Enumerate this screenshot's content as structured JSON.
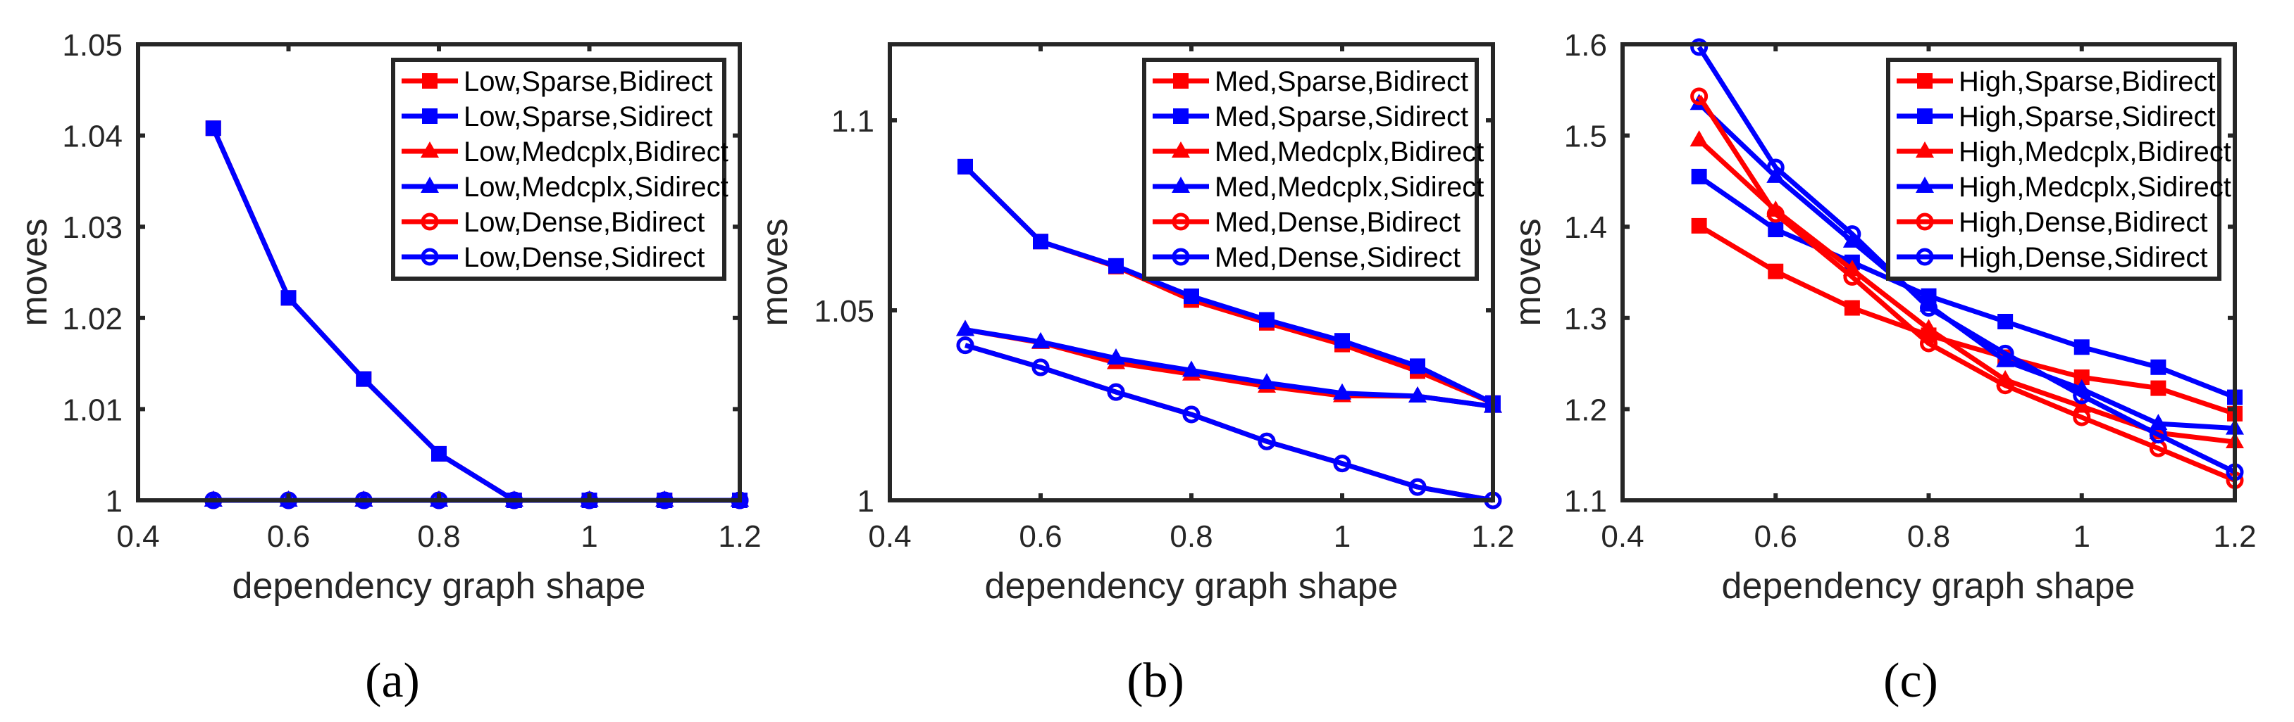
{
  "chart_data": [
    {
      "type": "line",
      "panel_label": "(a)",
      "xlabel": "dependency graph shape",
      "ylabel": "moves",
      "xlim": [
        0.4,
        1.2
      ],
      "ylim": [
        1,
        1.05
      ],
      "xticks": [
        "0.4",
        "0.6",
        "0.8",
        "1",
        "1.2"
      ],
      "yticks": [
        "1",
        "1.01",
        "1.02",
        "1.03",
        "1.04",
        "1.05"
      ],
      "legend_position": "top-right",
      "grid": false,
      "x": [
        0.5,
        0.6,
        0.7,
        0.8,
        0.9,
        1.0,
        1.1,
        1.2
      ],
      "series": [
        {
          "name": "Low,Sparse,Bidirect",
          "color": "#ff0000",
          "marker": "square",
          "values": [
            1.0408,
            1.0222,
            1.0133,
            1.0051,
            1,
            1,
            1,
            1
          ]
        },
        {
          "name": "Low,Sparse,Sidirect",
          "color": "#0000ff",
          "marker": "square",
          "values": [
            1.0408,
            1.0222,
            1.0133,
            1.0051,
            1,
            1,
            1,
            1
          ]
        },
        {
          "name": "Low,Medcplx,Bidirect",
          "color": "#ff0000",
          "marker": "triangle",
          "values": [
            1,
            1,
            1,
            1,
            1,
            1,
            1,
            1
          ]
        },
        {
          "name": "Low,Medcplx,Sidirect",
          "color": "#0000ff",
          "marker": "triangle",
          "values": [
            1,
            1,
            1,
            1,
            1,
            1,
            1,
            1
          ]
        },
        {
          "name": "Low,Dense,Bidirect",
          "color": "#ff0000",
          "marker": "circle",
          "values": [
            1,
            1,
            1,
            1,
            1,
            1,
            1,
            1
          ]
        },
        {
          "name": "Low,Dense,Sidirect",
          "color": "#0000ff",
          "marker": "circle",
          "values": [
            1,
            1,
            1,
            1,
            1,
            1,
            1,
            1
          ]
        }
      ]
    },
    {
      "type": "line",
      "panel_label": "(b)",
      "xlabel": "dependency graph shape",
      "ylabel": "moves",
      "xlim": [
        0.4,
        1.2
      ],
      "ylim": [
        1,
        1.12
      ],
      "xticks": [
        "0.4",
        "0.6",
        "0.8",
        "1",
        "1.2"
      ],
      "yticks": [
        "1",
        "1.05",
        "1.1"
      ],
      "legend_position": "top-right",
      "grid": false,
      "x": [
        0.5,
        0.6,
        0.7,
        0.8,
        0.9,
        1.0,
        1.1,
        1.2
      ],
      "series": [
        {
          "name": "Med,Sparse,Bidirect",
          "color": "#ff0000",
          "marker": "square",
          "values": [
            1.0878,
            1.0681,
            1.0615,
            1.0527,
            1.0467,
            1.041,
            1.034,
            1.0256
          ]
        },
        {
          "name": "Med,Sparse,Sidirect",
          "color": "#0000ff",
          "marker": "square",
          "values": [
            1.0878,
            1.0681,
            1.0617,
            1.0537,
            1.0475,
            1.042,
            1.0353,
            1.0256
          ]
        },
        {
          "name": "Med,Medcplx,Bidirect",
          "color": "#ff0000",
          "marker": "triangle",
          "values": [
            1.0449,
            1.0415,
            1.0362,
            1.0332,
            1.03,
            1.0275,
            1.0274,
            1.0247
          ]
        },
        {
          "name": "Med,Medcplx,Sidirect",
          "color": "#0000ff",
          "marker": "triangle",
          "values": [
            1.0449,
            1.0417,
            1.0374,
            1.0342,
            1.0309,
            1.0282,
            1.0274,
            1.0247
          ]
        },
        {
          "name": "Med,Dense,Bidirect",
          "color": "#ff0000",
          "marker": "circle",
          "values": [
            1.0408,
            1.035,
            1.0285,
            1.0226,
            1.0155,
            1.0097,
            1.0035,
            1.0
          ]
        },
        {
          "name": "Med,Dense,Sidirect",
          "color": "#0000ff",
          "marker": "circle",
          "values": [
            1.0408,
            1.035,
            1.0285,
            1.0226,
            1.0155,
            1.0097,
            1.0035,
            1.0
          ]
        }
      ]
    },
    {
      "type": "line",
      "panel_label": "(c)",
      "xlabel": "dependency graph shape",
      "ylabel": "moves",
      "xlim": [
        0.4,
        1.2
      ],
      "ylim": [
        1.1,
        1.6
      ],
      "xticks": [
        "0.4",
        "0.6",
        "0.8",
        "1",
        "1.2"
      ],
      "yticks": [
        "1.1",
        "1.2",
        "1.3",
        "1.4",
        "1.5",
        "1.6"
      ],
      "legend_position": "top-right",
      "grid": false,
      "x": [
        0.5,
        0.6,
        0.7,
        0.8,
        0.9,
        1.0,
        1.1,
        1.2
      ],
      "series": [
        {
          "name": "High,Sparse,Bidirect",
          "color": "#ff0000",
          "marker": "square",
          "values": [
            1.401,
            1.351,
            1.311,
            1.281,
            1.257,
            1.235,
            1.223,
            1.195
          ]
        },
        {
          "name": "High,Sparse,Sidirect",
          "color": "#0000ff",
          "marker": "square",
          "values": [
            1.455,
            1.397,
            1.361,
            1.324,
            1.296,
            1.268,
            1.246,
            1.213
          ]
        },
        {
          "name": "High,Medcplx,Bidirect",
          "color": "#ff0000",
          "marker": "triangle",
          "values": [
            1.495,
            1.418,
            1.353,
            1.288,
            1.232,
            1.203,
            1.174,
            1.164
          ]
        },
        {
          "name": "High,Medcplx,Sidirect",
          "color": "#0000ff",
          "marker": "triangle",
          "values": [
            1.535,
            1.455,
            1.384,
            1.314,
            1.253,
            1.222,
            1.184,
            1.179
          ]
        },
        {
          "name": "High,Dense,Bidirect",
          "color": "#ff0000",
          "marker": "circle",
          "values": [
            1.543,
            1.414,
            1.345,
            1.272,
            1.226,
            1.191,
            1.157,
            1.122
          ]
        },
        {
          "name": "High,Dense,Sidirect",
          "color": "#0000ff",
          "marker": "circle",
          "values": [
            1.597,
            1.465,
            1.392,
            1.311,
            1.261,
            1.215,
            1.172,
            1.131
          ]
        }
      ]
    }
  ]
}
